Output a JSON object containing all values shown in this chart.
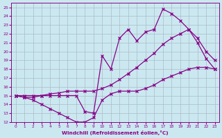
{
  "xlabel": "Windchill (Refroidissement éolien,°C)",
  "bg_color": "#cbe8f0",
  "grid_color": "#aabbc8",
  "line_color": "#880088",
  "xlim": [
    -0.5,
    23.5
  ],
  "ylim": [
    12,
    25.5
  ],
  "xticks": [
    0,
    1,
    2,
    3,
    4,
    5,
    6,
    7,
    8,
    9,
    10,
    11,
    12,
    13,
    14,
    15,
    16,
    17,
    18,
    19,
    20,
    21,
    22,
    23
  ],
  "yticks": [
    12,
    13,
    14,
    15,
    16,
    17,
    18,
    19,
    20,
    21,
    22,
    23,
    24,
    25
  ],
  "series": [
    {
      "x": [
        0,
        1,
        2,
        3,
        4,
        5,
        6,
        7,
        8,
        9,
        10,
        11,
        12,
        13,
        14,
        15,
        16,
        17,
        18,
        19,
        20,
        21,
        22,
        23
      ],
      "y": [
        15,
        14.8,
        14.5,
        14.0,
        13.5,
        13.0,
        12.5,
        12.0,
        12.0,
        12.5,
        14.5,
        15.2,
        15.5,
        15.5,
        15.5,
        15.8,
        16.2,
        16.8,
        17.2,
        17.6,
        18.0,
        18.2,
        18.2,
        18.0
      ]
    },
    {
      "x": [
        0,
        1,
        2,
        3,
        4,
        5,
        6,
        7,
        8,
        9,
        10,
        11,
        12,
        13,
        14,
        15,
        16,
        17,
        18,
        19,
        20,
        21,
        22,
        23
      ],
      "y": [
        15,
        14.8,
        14.8,
        15.0,
        15.0,
        15.0,
        15.0,
        15.0,
        13.2,
        13.0,
        19.5,
        18.0,
        21.5,
        22.5,
        21.2,
        22.2,
        22.5,
        24.8,
        24.3,
        23.5,
        22.5,
        21.0,
        19.2,
        18.0
      ]
    },
    {
      "x": [
        0,
        1,
        2,
        3,
        4,
        5,
        6,
        7,
        8,
        9,
        10,
        11,
        12,
        13,
        14,
        15,
        16,
        17,
        18,
        19,
        20,
        21,
        22,
        23
      ],
      "y": [
        15.0,
        15.0,
        15.0,
        15.0,
        15.2,
        15.3,
        15.5,
        15.5,
        15.5,
        15.5,
        15.8,
        16.2,
        16.8,
        17.5,
        18.2,
        19.0,
        19.8,
        20.8,
        21.5,
        22.0,
        22.5,
        21.5,
        20.0,
        19.0
      ]
    }
  ]
}
